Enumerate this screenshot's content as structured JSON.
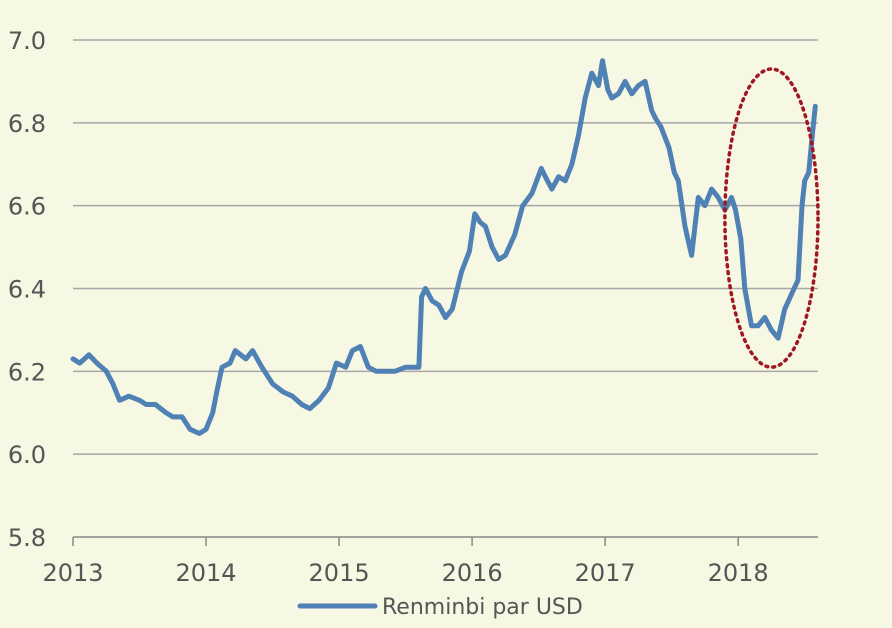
{
  "chart_data": {
    "type": "line",
    "title": "",
    "xlabel": "",
    "ylabel": "",
    "xlim": [
      2013,
      2018.6
    ],
    "ylim": [
      5.8,
      7.0
    ],
    "yticks": [
      "5.8",
      "6.0",
      "6.2",
      "6.4",
      "6.6",
      "6.8",
      "7.0"
    ],
    "xticks": [
      "2013",
      "2014",
      "2015",
      "2016",
      "2017",
      "2018"
    ],
    "grid": "horizontal",
    "legend_position": "bottom-center",
    "highlight": {
      "shape": "dotted-ellipse",
      "color": "#a01822",
      "x_range": [
        2017.9,
        2018.6
      ],
      "y_range": [
        6.21,
        6.93
      ]
    },
    "colors": {
      "line": "#4f81b5",
      "grid": "#a6a6a6",
      "axis": "#888888",
      "text": "#555555"
    },
    "series": [
      {
        "name": "Renminbi par USD",
        "x": [
          2013.0,
          2013.05,
          2013.12,
          2013.18,
          2013.25,
          2013.3,
          2013.35,
          2013.42,
          2013.5,
          2013.55,
          2013.62,
          2013.7,
          2013.75,
          2013.82,
          2013.88,
          2013.95,
          2014.0,
          2014.05,
          2014.08,
          2014.12,
          2014.18,
          2014.22,
          2014.3,
          2014.35,
          2014.42,
          2014.5,
          2014.58,
          2014.65,
          2014.72,
          2014.78,
          2014.85,
          2014.92,
          2014.98,
          2015.05,
          2015.1,
          2015.16,
          2015.22,
          2015.28,
          2015.35,
          2015.42,
          2015.5,
          2015.6,
          2015.62,
          2015.65,
          2015.7,
          2015.75,
          2015.8,
          2015.85,
          2015.92,
          2015.98,
          2016.02,
          2016.06,
          2016.1,
          2016.15,
          2016.2,
          2016.25,
          2016.32,
          2016.38,
          2016.45,
          2016.52,
          2016.55,
          2016.6,
          2016.65,
          2016.7,
          2016.75,
          2016.8,
          2016.85,
          2016.9,
          2016.95,
          2016.98,
          2017.02,
          2017.05,
          2017.1,
          2017.15,
          2017.2,
          2017.25,
          2017.3,
          2017.35,
          2017.38,
          2017.42,
          2017.48,
          2017.52,
          2017.55,
          2017.6,
          2017.65,
          2017.7,
          2017.75,
          2017.8,
          2017.85,
          2017.9,
          2017.95,
          2017.98,
          2018.02,
          2018.05,
          2018.1,
          2018.15,
          2018.2,
          2018.25,
          2018.3,
          2018.35,
          2018.42,
          2018.45,
          2018.48,
          2018.5,
          2018.53,
          2018.56,
          2018.58
        ],
        "y": [
          6.23,
          6.22,
          6.24,
          6.22,
          6.2,
          6.17,
          6.13,
          6.14,
          6.13,
          6.12,
          6.12,
          6.1,
          6.09,
          6.09,
          6.06,
          6.05,
          6.06,
          6.1,
          6.15,
          6.21,
          6.22,
          6.25,
          6.23,
          6.25,
          6.21,
          6.17,
          6.15,
          6.14,
          6.12,
          6.11,
          6.13,
          6.16,
          6.22,
          6.21,
          6.25,
          6.26,
          6.21,
          6.2,
          6.2,
          6.2,
          6.21,
          6.21,
          6.38,
          6.4,
          6.37,
          6.36,
          6.33,
          6.35,
          6.44,
          6.49,
          6.58,
          6.56,
          6.55,
          6.5,
          6.47,
          6.48,
          6.53,
          6.6,
          6.63,
          6.69,
          6.67,
          6.64,
          6.67,
          6.66,
          6.7,
          6.77,
          6.86,
          6.92,
          6.89,
          6.95,
          6.88,
          6.86,
          6.87,
          6.9,
          6.87,
          6.89,
          6.9,
          6.83,
          6.81,
          6.79,
          6.74,
          6.68,
          6.66,
          6.55,
          6.48,
          6.62,
          6.6,
          6.64,
          6.62,
          6.59,
          6.62,
          6.59,
          6.52,
          6.4,
          6.31,
          6.31,
          6.33,
          6.3,
          6.28,
          6.35,
          6.4,
          6.42,
          6.6,
          6.66,
          6.68,
          6.78,
          6.84
        ]
      }
    ]
  }
}
